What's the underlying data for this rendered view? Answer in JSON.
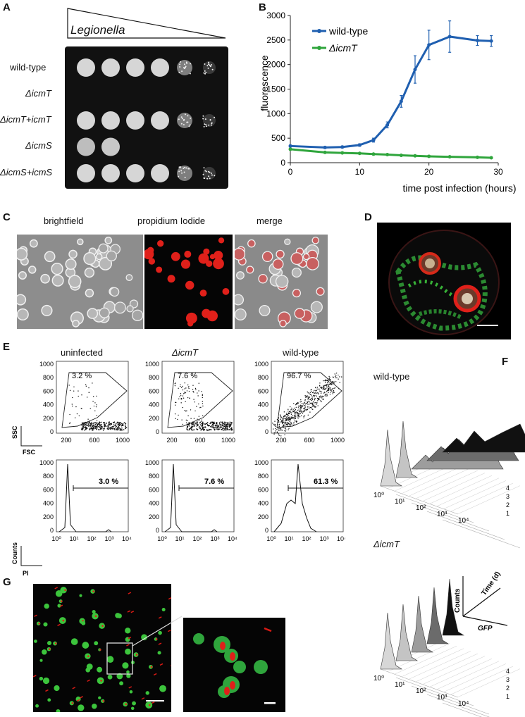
{
  "panels": {
    "A": {
      "label": "A",
      "gradient_label": "Legionella",
      "rows": [
        "wild-type",
        "ΔicmT",
        "ΔicmT+icmT",
        "ΔicmS",
        "ΔicmS+icmS"
      ],
      "dilution_spots": [
        6,
        0,
        6,
        2,
        6
      ]
    },
    "B": {
      "label": "B",
      "legend": [
        "wild-type",
        "ΔicmT"
      ],
      "xlabel": "time post infection (hours)",
      "ylabel": "fluorescence",
      "xticks": [
        "0",
        "10",
        "20",
        "30"
      ],
      "yticks": [
        "0",
        "500",
        "1000",
        "1500",
        "2000",
        "2500",
        "3000"
      ]
    },
    "C": {
      "label": "C",
      "titles": [
        "brightfield",
        "propidium Iodide",
        "merge"
      ]
    },
    "D": {
      "label": "D"
    },
    "E": {
      "label": "E",
      "titles": [
        "uninfected",
        "ΔicmT",
        "wild-type"
      ],
      "scatter_percent": [
        "3.2 %",
        "7.6 %",
        "96.7 %"
      ],
      "hist_percent": [
        "3.0 %",
        "7.6 %",
        "61.3 %"
      ],
      "scatter_y_ticks": [
        "1000",
        "800",
        "600",
        "400",
        "200",
        "0"
      ],
      "scatter_x_ticks": [
        "200",
        "600",
        "1000"
      ],
      "hist_y_ticks": [
        "1000",
        "800",
        "600",
        "400",
        "200",
        "0"
      ],
      "hist_x_ticks": [
        "10⁰",
        "10¹",
        "10²",
        "10³",
        "10⁴"
      ],
      "axis_ssc": "SSC",
      "axis_fsc": "FSC",
      "axis_counts": "Counts",
      "axis_pi": "PI"
    },
    "F": {
      "label": "F",
      "top_title": "wild-type",
      "bottom_title": "ΔicmT",
      "depth_ticks": [
        "1",
        "2",
        "3",
        "4"
      ],
      "x_ticks": [
        "10⁰",
        "10¹",
        "10²",
        "10³",
        "10⁴"
      ],
      "axis_counts": "Counts",
      "axis_time": "Time (d)",
      "axis_gfp": "GFP"
    },
    "G": {
      "label": "G"
    }
  },
  "chart_data": [
    {
      "type": "line",
      "title": "",
      "xlabel": "time post infection (hours)",
      "ylabel": "fluorescence",
      "xlim": [
        0,
        30
      ],
      "ylim": [
        0,
        3000
      ],
      "grid": false,
      "legend_position": "top-left",
      "series": [
        {
          "name": "wild-type",
          "color": "#1f5fb0",
          "x": [
            0,
            5,
            7.5,
            10,
            12,
            14,
            16,
            18,
            20,
            23,
            27,
            29
          ],
          "y": [
            340,
            310,
            320,
            360,
            460,
            770,
            1250,
            1900,
            2400,
            2570,
            2490,
            2480
          ],
          "err": [
            20,
            20,
            20,
            25,
            40,
            60,
            120,
            280,
            300,
            320,
            100,
            110
          ]
        },
        {
          "name": "ΔicmT",
          "color": "#2fa53c",
          "x": [
            0,
            5,
            7.5,
            10,
            12,
            14,
            16,
            18,
            20,
            23,
            27,
            29
          ],
          "y": [
            275,
            210,
            200,
            190,
            175,
            165,
            150,
            140,
            130,
            120,
            110,
            100
          ],
          "err": [
            15,
            12,
            10,
            10,
            10,
            10,
            10,
            10,
            10,
            10,
            10,
            10
          ]
        }
      ]
    }
  ],
  "colors": {
    "wt": "#1f5fb0",
    "mut": "#2fa53c",
    "red": "#e0201a",
    "green": "#3cc43c"
  }
}
